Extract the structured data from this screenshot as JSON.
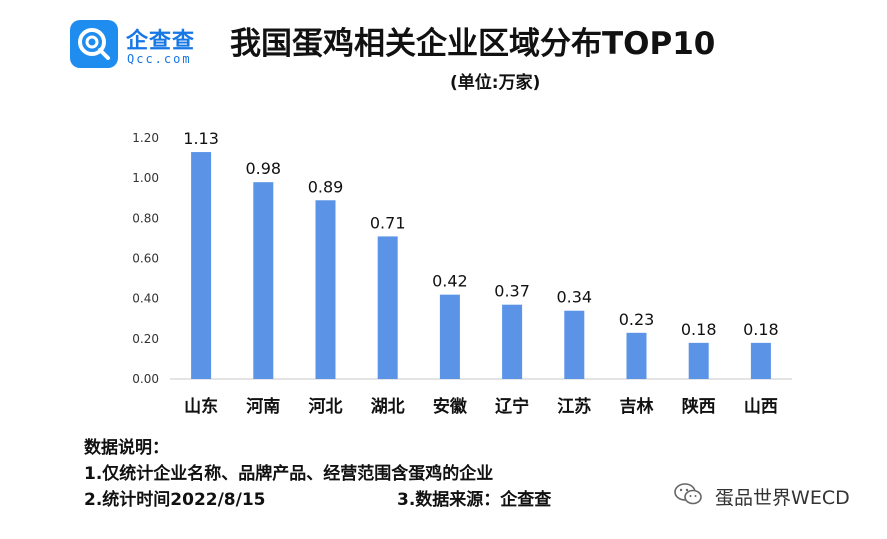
{
  "logo": {
    "name": "企查查",
    "domain": "Qcc.com",
    "color": "#1f8df0"
  },
  "title": "我国蛋鸡相关企业区域分布TOP10",
  "unit": "(单位:万家)",
  "chart_data": {
    "type": "bar",
    "categories": [
      "山东",
      "河南",
      "河北",
      "湖北",
      "安徽",
      "辽宁",
      "江苏",
      "吉林",
      "陕西",
      "山西"
    ],
    "values": [
      1.13,
      0.98,
      0.89,
      0.71,
      0.42,
      0.37,
      0.34,
      0.23,
      0.18,
      0.18
    ],
    "data_labels": [
      "1.13",
      "0.98",
      "0.89",
      "0.71",
      "0.42",
      "0.37",
      "0.34",
      "0.23",
      "0.18",
      "0.18"
    ],
    "yticks": [
      "0.00",
      "0.20",
      "0.40",
      "0.60",
      "0.80",
      "1.00",
      "1.20"
    ],
    "ylim": [
      0,
      1.2
    ],
    "bar_color": "#5b94e6",
    "grid": false
  },
  "notes": {
    "heading": "数据说明：",
    "line1": "1.仅统计企业名称、品牌产品、经营范围含蛋鸡的企业",
    "line2": "2.统计时间2022/8/15",
    "line3": "3.数据来源：企查查"
  },
  "watermark": "蛋品世界WECD"
}
